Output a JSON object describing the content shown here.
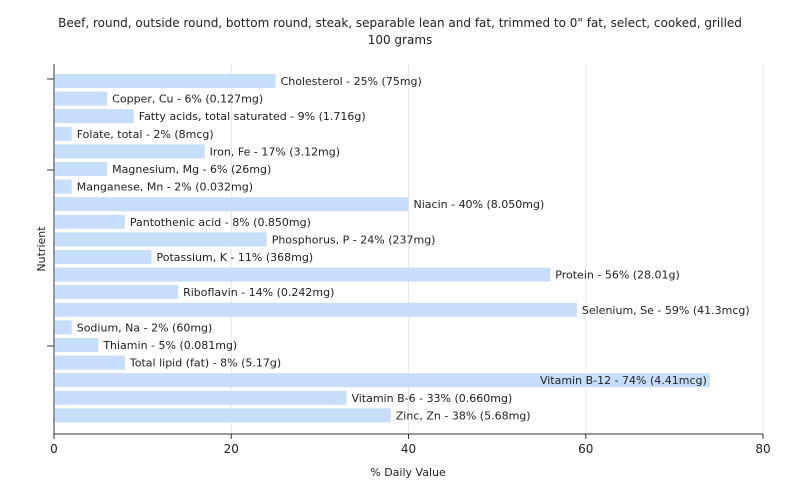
{
  "chart_data": {
    "type": "bar",
    "orientation": "horizontal",
    "title_lines": [
      "Beef, round, outside round, bottom round, steak, separable lean and fat, trimmed to 0\" fat, select, cooked,  grilled",
      "100 grams"
    ],
    "xlabel": "% Daily Value",
    "ylabel": "Nutrient",
    "xlim": [
      0,
      80
    ],
    "xticks": [
      0,
      20,
      40,
      60,
      80
    ],
    "grid": true,
    "bar_color": "#c6defa",
    "bars": [
      {
        "name": "Cholesterol",
        "value": 25,
        "label": "Cholesterol - 25% (75mg)"
      },
      {
        "name": "Copper, Cu",
        "value": 6,
        "label": "Copper, Cu - 6% (0.127mg)"
      },
      {
        "name": "Fatty acids, total saturated",
        "value": 9,
        "label": "Fatty acids, total saturated - 9% (1.716g)"
      },
      {
        "name": "Folate, total",
        "value": 2,
        "label": "Folate, total - 2% (8mcg)"
      },
      {
        "name": "Iron, Fe",
        "value": 17,
        "label": "Iron, Fe - 17% (3.12mg)"
      },
      {
        "name": "Magnesium, Mg",
        "value": 6,
        "label": "Magnesium, Mg - 6% (26mg)"
      },
      {
        "name": "Manganese, Mn",
        "value": 2,
        "label": "Manganese, Mn - 2% (0.032mg)"
      },
      {
        "name": "Niacin",
        "value": 40,
        "label": "Niacin - 40% (8.050mg)"
      },
      {
        "name": "Pantothenic acid",
        "value": 8,
        "label": "Pantothenic acid - 8% (0.850mg)"
      },
      {
        "name": "Phosphorus, P",
        "value": 24,
        "label": "Phosphorus, P - 24% (237mg)"
      },
      {
        "name": "Potassium, K",
        "value": 11,
        "label": "Potassium, K - 11% (368mg)"
      },
      {
        "name": "Protein",
        "value": 56,
        "label": "Protein - 56% (28.01g)"
      },
      {
        "name": "Riboflavin",
        "value": 14,
        "label": "Riboflavin - 14% (0.242mg)"
      },
      {
        "name": "Selenium, Se",
        "value": 59,
        "label": "Selenium, Se - 59% (41.3mcg)"
      },
      {
        "name": "Sodium, Na",
        "value": 2,
        "label": "Sodium, Na - 2% (60mg)"
      },
      {
        "name": "Thiamin",
        "value": 5,
        "label": "Thiamin - 5% (0.081mg)"
      },
      {
        "name": "Total lipid (fat)",
        "value": 8,
        "label": "Total lipid (fat) - 8% (5.17g)"
      },
      {
        "name": "Vitamin B-12",
        "value": 74,
        "label": "Vitamin B-12 - 74% (4.41mcg)"
      },
      {
        "name": "Vitamin B-6",
        "value": 33,
        "label": "Vitamin B-6 - 33% (0.660mg)"
      },
      {
        "name": "Zinc, Zn",
        "value": 38,
        "label": "Zinc, Zn - 38% (5.68mg)"
      }
    ]
  }
}
